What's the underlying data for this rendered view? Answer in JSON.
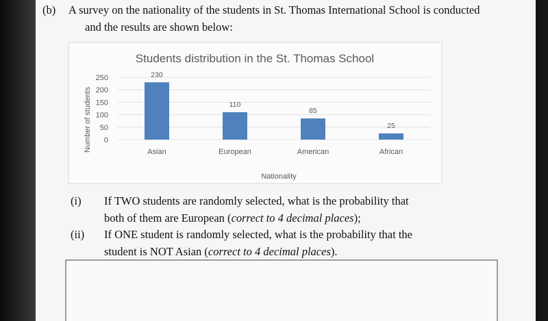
{
  "question": {
    "label": "(b)",
    "lines": [
      "A survey on the nationality of the students in St. Thomas International School is conducted",
      "and the results are shown below:"
    ]
  },
  "chart_data": {
    "type": "bar",
    "title": "Students distribution in the St. Thomas School",
    "x_label": "Nationality",
    "y_label": "Number of students",
    "categories": [
      "Asian",
      "European",
      "American",
      "African"
    ],
    "values": [
      230,
      110,
      85,
      25
    ],
    "color": "#4f81bd",
    "ylim": [
      0,
      250
    ],
    "yticks": [
      0,
      50,
      100,
      150,
      200,
      250
    ],
    "grid": true
  },
  "parts": [
    {
      "label": "(i)",
      "lines": [
        [
          "If TWO students are randomly selected, what is the probability that"
        ],
        [
          "both of them are European (",
          "correct to 4 decimal places",
          ");"
        ]
      ]
    },
    {
      "label": "(ii)",
      "lines": [
        [
          "If ONE student is randomly selected, what is the probability that the"
        ],
        [
          "student is NOT Asian (",
          "correct to 4 decimal places",
          ")."
        ]
      ]
    }
  ]
}
